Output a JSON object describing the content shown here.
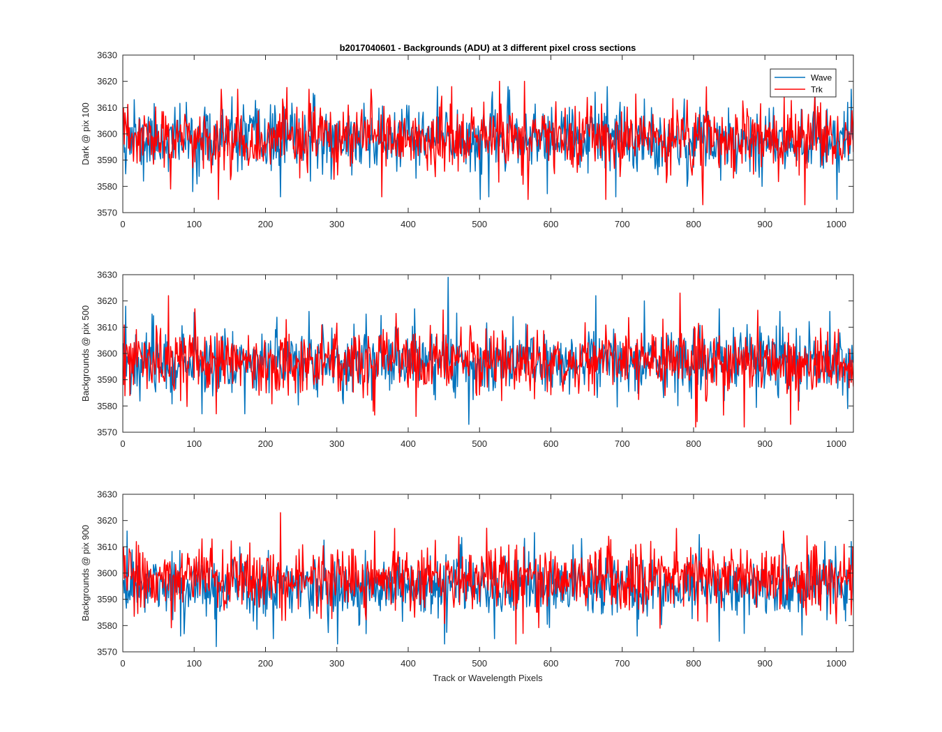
{
  "figure": {
    "title": "b2017040601 - Backgrounds (ADU) at 3 different pixel cross sections",
    "shared_xlabel": "Track or Wavelength Pixels"
  },
  "legend": {
    "placement": "top-right",
    "items": [
      {
        "name": "Wave",
        "color": "#0072BD"
      },
      {
        "name": "Trk",
        "color": "#FF0000"
      }
    ]
  },
  "chart_data": [
    {
      "type": "line",
      "ylabel": "Dark @ pix 100",
      "xlim": [
        0,
        1024
      ],
      "ylim": [
        3570,
        3630
      ],
      "xticks": [
        0,
        100,
        200,
        300,
        400,
        500,
        600,
        700,
        800,
        900,
        1000
      ],
      "yticks": [
        3570,
        3580,
        3590,
        3600,
        3610,
        3620,
        3630
      ],
      "grid": false,
      "series": [
        {
          "name": "Wave",
          "color": "#0072BD",
          "mean": 3598,
          "sd": 6,
          "seed": 11,
          "spikes": [
            [
              0,
              3608
            ],
            [
              6,
              3611
            ],
            [
              15,
              3613
            ],
            [
              28,
              3582
            ],
            [
              97,
              3578
            ],
            [
              220,
              3576
            ],
            [
              440,
              3618
            ],
            [
              500,
              3575
            ],
            [
              512,
              3576
            ],
            [
              678,
              3618
            ],
            [
              690,
              3576
            ],
            [
              740,
              3610
            ],
            [
              790,
              3580
            ],
            [
              895,
              3580
            ],
            [
              1000,
              3575
            ],
            [
              1015,
              3612
            ],
            [
              1020,
              3617
            ]
          ]
        },
        {
          "name": "Trk",
          "color": "#FF0000",
          "mean": 3598,
          "sd": 6,
          "seed": 23,
          "spikes": [
            [
              2,
              3608
            ],
            [
              66,
              3579
            ],
            [
              133,
              3575
            ],
            [
              137,
              3617
            ],
            [
              160,
              3617
            ],
            [
              260,
              3617
            ],
            [
              347,
              3617
            ],
            [
              362,
              3576
            ],
            [
              527,
              3620
            ],
            [
              562,
              3620
            ],
            [
              567,
              3575
            ],
            [
              676,
              3575
            ],
            [
              812,
              3573
            ],
            [
              955,
              3573
            ],
            [
              1022,
              3603
            ]
          ]
        }
      ]
    },
    {
      "type": "line",
      "ylabel": "Backgrounds @ pix 500",
      "xlim": [
        0,
        1024
      ],
      "ylim": [
        3570,
        3630
      ],
      "xticks": [
        0,
        100,
        200,
        300,
        400,
        500,
        600,
        700,
        800,
        900,
        1000
      ],
      "yticks": [
        3570,
        3580,
        3590,
        3600,
        3610,
        3620,
        3630
      ],
      "grid": false,
      "series": [
        {
          "name": "Wave",
          "color": "#0072BD",
          "mean": 3597,
          "sd": 6,
          "seed": 37,
          "spikes": [
            [
              3,
              3618
            ],
            [
              40,
              3615
            ],
            [
              110,
              3577
            ],
            [
              170,
              3577
            ],
            [
              260,
              3616
            ],
            [
              340,
              3615
            ],
            [
              408,
              3617
            ],
            [
              455,
              3629
            ],
            [
              484,
              3573
            ],
            [
              662,
              3622
            ],
            [
              730,
              3620
            ],
            [
              835,
              3617
            ],
            [
              920,
              3616
            ],
            [
              990,
              3616
            ],
            [
              1015,
              3579
            ]
          ]
        },
        {
          "name": "Trk",
          "color": "#FF0000",
          "mean": 3597,
          "sd": 6,
          "seed": 53,
          "spikes": [
            [
              0,
              3588
            ],
            [
              63,
              3622
            ],
            [
              80,
              3582
            ],
            [
              100,
              3617
            ],
            [
              130,
              3577
            ],
            [
              350,
              3578
            ],
            [
              410,
              3576
            ],
            [
              530,
              3582
            ],
            [
              780,
              3623
            ],
            [
              802,
              3572
            ],
            [
              804,
              3574
            ],
            [
              870,
              3572
            ],
            [
              935,
              3573
            ],
            [
              1020,
              3589
            ]
          ]
        }
      ]
    },
    {
      "type": "line",
      "ylabel": "Backgrounds @ pix 900",
      "xlim": [
        0,
        1024
      ],
      "ylim": [
        3570,
        3630
      ],
      "xticks": [
        0,
        100,
        200,
        300,
        400,
        500,
        600,
        700,
        800,
        900,
        1000
      ],
      "yticks": [
        3570,
        3580,
        3590,
        3600,
        3610,
        3620,
        3630
      ],
      "grid": false,
      "series": [
        {
          "name": "Wave",
          "color": "#0072BD",
          "mean": 3595,
          "sd": 6,
          "seed": 71,
          "spikes": [
            [
              5,
              3616
            ],
            [
              80,
              3576
            ],
            [
              130,
              3572
            ],
            [
              210,
              3575
            ],
            [
              300,
              3573
            ],
            [
              450,
              3573
            ],
            [
              520,
              3575
            ],
            [
              720,
              3576
            ],
            [
              835,
              3574
            ],
            [
              870,
              3577
            ],
            [
              1010,
              3586
            ],
            [
              1020,
              3612
            ]
          ]
        },
        {
          "name": "Trk",
          "color": "#FF0000",
          "mean": 3598,
          "sd": 6,
          "seed": 89,
          "spikes": [
            [
              0,
              3610
            ],
            [
              220,
              3623
            ],
            [
              352,
              3616
            ],
            [
              380,
              3617
            ],
            [
              470,
              3614
            ],
            [
              550,
              3573
            ],
            [
              560,
              3577
            ],
            [
              680,
              3614
            ],
            [
              752,
              3579
            ],
            [
              775,
              3617
            ],
            [
              925,
              3616
            ],
            [
              1010,
              3611
            ],
            [
              1022,
              3610
            ]
          ]
        }
      ]
    }
  ]
}
